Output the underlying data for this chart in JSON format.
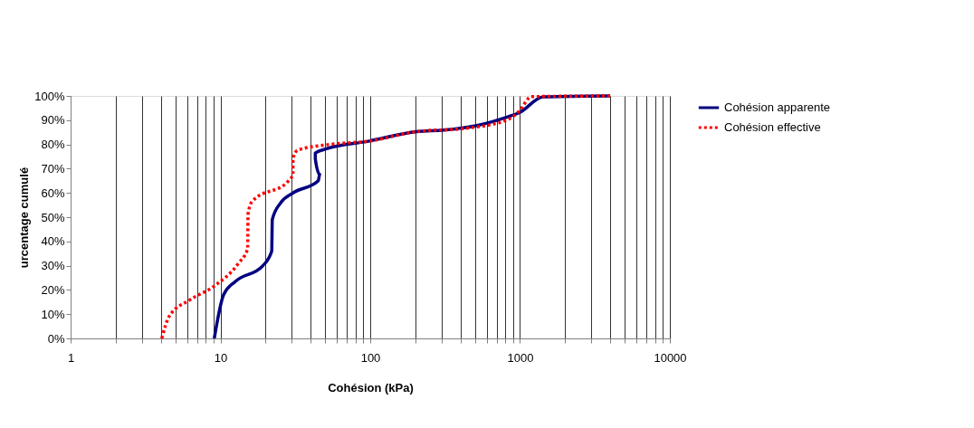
{
  "chart_data": {
    "type": "line",
    "xlabel": "Cohésion (kPa)",
    "ylabel": "urcentage cumulé",
    "log": "x",
    "grid": "x",
    "legend": "right",
    "marker": "none",
    "xlim": [
      1,
      10000
    ],
    "ylim": [
      0,
      100
    ],
    "xticks": [
      1,
      {
        "value": 2,
        "label": null
      },
      {
        "value": 3,
        "label": null
      },
      {
        "value": 4,
        "label": null
      },
      {
        "value": 5,
        "label": null
      },
      {
        "value": 6,
        "label": null
      },
      {
        "value": 7,
        "label": null
      },
      {
        "value": 8,
        "label": null
      },
      {
        "value": 9,
        "label": null
      },
      10,
      {
        "value": 20,
        "label": null
      },
      {
        "value": 30,
        "label": null
      },
      {
        "value": 40,
        "label": null
      },
      {
        "value": 50,
        "label": null
      },
      {
        "value": 60,
        "label": null
      },
      {
        "value": 70,
        "label": null
      },
      {
        "value": 80,
        "label": null
      },
      {
        "value": 90,
        "label": null
      },
      100,
      {
        "value": 200,
        "label": null
      },
      {
        "value": 300,
        "label": null
      },
      {
        "value": 400,
        "label": null
      },
      {
        "value": 500,
        "label": null
      },
      {
        "value": 600,
        "label": null
      },
      {
        "value": 700,
        "label": null
      },
      {
        "value": 800,
        "label": null
      },
      {
        "value": 900,
        "label": null
      },
      1000,
      {
        "value": 2000,
        "label": null
      },
      {
        "value": 3000,
        "label": null
      },
      {
        "value": 4000,
        "label": null
      },
      {
        "value": 5000,
        "label": null
      },
      {
        "value": 6000,
        "label": null
      },
      {
        "value": 7000,
        "label": null
      },
      {
        "value": 8000,
        "label": null
      },
      {
        "value": 9000,
        "label": null
      },
      10000
    ],
    "yticks": [
      {
        "value": 0,
        "label": "0%"
      },
      {
        "value": 10,
        "label": "10%"
      },
      {
        "value": 20,
        "label": "20%"
      },
      {
        "value": 30,
        "label": "30%"
      },
      {
        "value": 40,
        "label": "40%"
      },
      {
        "value": 50,
        "label": "50%"
      },
      {
        "value": 60,
        "label": "60%"
      },
      {
        "value": 70,
        "label": "70%"
      },
      {
        "value": 80,
        "label": "80%"
      },
      {
        "value": 90,
        "label": "90%"
      },
      {
        "value": 100,
        "label": "100%"
      }
    ],
    "series": [
      {
        "name": "Cohésion apparente",
        "color": "#000080",
        "line_style": "solid",
        "x": [
          9.1,
          10.5,
          12.6,
          19.2,
          22,
          22.2,
          25.3,
          30.5,
          45,
          46,
          43,
          43,
          51,
          97,
          204,
          310,
          516,
          820,
          990,
          1430,
          4000
        ],
        "values": [
          0,
          18,
          23.5,
          30,
          36,
          49,
          56,
          60,
          65,
          67.6,
          74,
          76.4,
          78.2,
          81.3,
          85.3,
          85.9,
          87.8,
          91.3,
          93.1,
          99.6,
          100
        ]
      },
      {
        "name": "Cohésion effective",
        "color": "#ff0000",
        "line_style": "dotted",
        "x": [
          4.06,
          4.56,
          6.3,
          9.1,
          13.2,
          15.2,
          15.3,
          16.3,
          28.5,
          30.5,
          30.5,
          32.7,
          56,
          97,
          204,
          428,
          820,
          990,
          1190,
          4000
        ],
        "values": [
          0,
          9.2,
          16,
          21.6,
          31,
          37,
          51.5,
          56.5,
          65,
          67.6,
          74,
          77.6,
          80.1,
          81.3,
          85.3,
          86.6,
          90.1,
          93.8,
          99.7,
          100
        ]
      }
    ]
  }
}
